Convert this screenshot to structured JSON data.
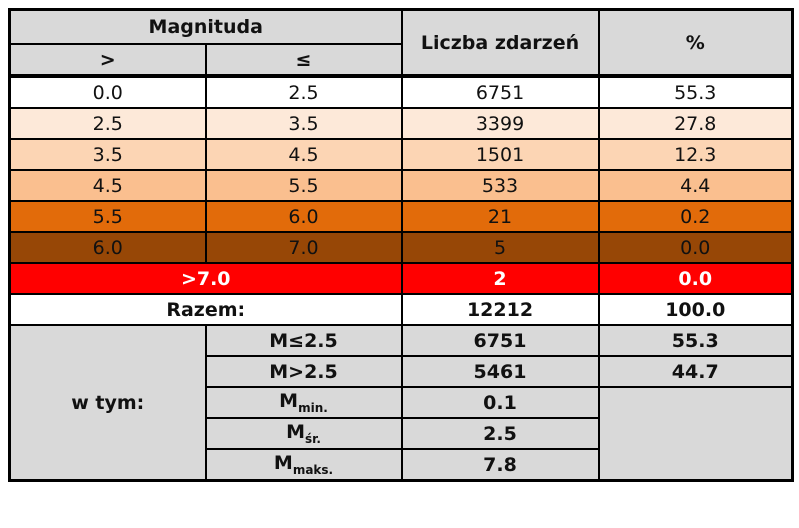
{
  "header": {
    "magnitude": "Magnituda",
    "gt": ">",
    "le": "≤",
    "count": "Liczba zdarzeń",
    "percent": "%"
  },
  "rows": [
    [
      "0.0",
      "2.5",
      "6751",
      "55.3"
    ],
    [
      "2.5",
      "3.5",
      "3399",
      "27.8"
    ],
    [
      "3.5",
      "4.5",
      "1501",
      "12.3"
    ],
    [
      "4.5",
      "5.5",
      "533",
      "4.4"
    ],
    [
      "5.5",
      "6.0",
      "21",
      "0.2"
    ],
    [
      "6.0",
      "7.0",
      "5",
      "0.0"
    ]
  ],
  "above": {
    "label": ">7.0",
    "count": "2",
    "percent": "0.0"
  },
  "total": {
    "label": "Razem:",
    "count": "12212",
    "percent": "100.0"
  },
  "breakdown": {
    "label": "w tym:",
    "rows": [
      {
        "label": "M≤2.5",
        "count": "6751",
        "percent": "55.3"
      },
      {
        "label": "M>2.5",
        "count": "5461",
        "percent": "44.7"
      },
      {
        "symbol": "M",
        "sub": "min.",
        "count": "0.1"
      },
      {
        "symbol": "M",
        "sub": "śr.",
        "count": "2.5"
      },
      {
        "symbol": "M",
        "sub": "maks.",
        "count": "7.8"
      }
    ]
  }
}
